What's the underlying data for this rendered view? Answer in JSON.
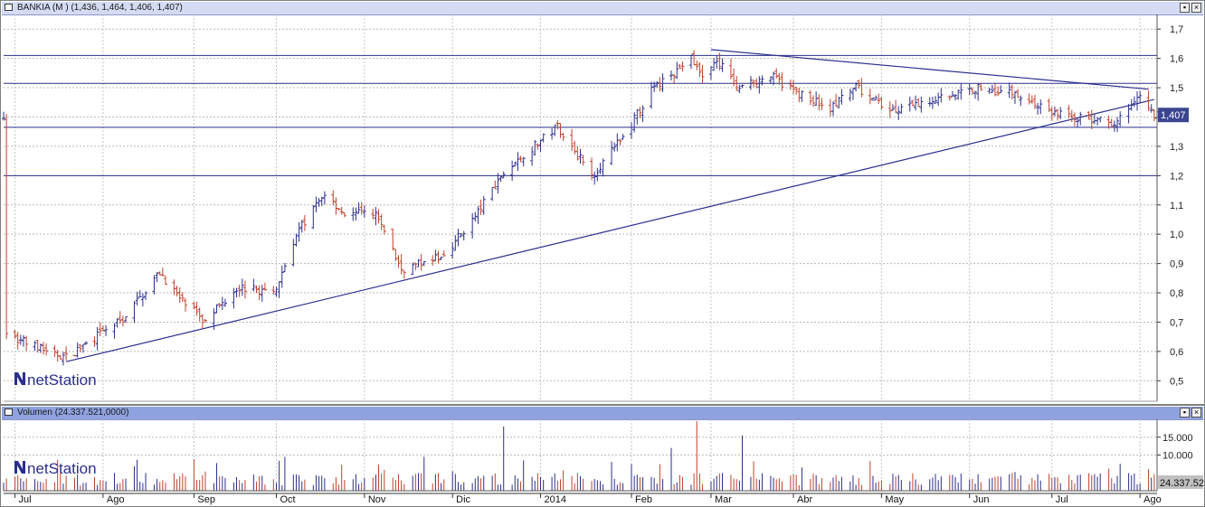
{
  "price_panel": {
    "title": "BANKIA (M ) (1,436, 1,464, 1,406, 1,407)",
    "last_price_badge": "1,407",
    "watermark": "netStation"
  },
  "volume_panel": {
    "title": "Volumen (24.337.521,0000)",
    "last_volume_badge": "24.337.52",
    "watermark": "netStation"
  },
  "window_buttons": {
    "minimize": "▪",
    "close": "×"
  },
  "colors": {
    "up": "#2b2e8c",
    "down": "#c0402a",
    "trendline": "#2b2e8c",
    "badge": "#3b4590",
    "title_bar": "#d4dbf3",
    "volume_title_bar": "#8fa2e0"
  },
  "chart_data": [
    {
      "type": "ohlc",
      "series_name": "BANKIA",
      "ohlc_last": {
        "open": 1.436,
        "high": 1.464,
        "low": 1.406,
        "close": 1.407
      },
      "yticks": [
        "1,7",
        "1,6",
        "1,5",
        "1,4",
        "1,3",
        "1,2",
        "1,1",
        "1,0",
        "0,9",
        "0,8",
        "0,7",
        "0,6",
        "0,5"
      ],
      "ytick_values": [
        1.7,
        1.6,
        1.5,
        1.4,
        1.3,
        1.2,
        1.1,
        1.0,
        0.9,
        0.8,
        0.7,
        0.6,
        0.5
      ],
      "ylim": [
        0.43,
        1.75
      ],
      "xticks": [
        "Jul",
        "Ago",
        "Sep",
        "Oct",
        "Nov",
        "Dic",
        "2014",
        "Feb",
        "Mar",
        "Abr",
        "May",
        "Jun",
        "Jul",
        "Ago"
      ],
      "horizontal_lines": [
        1.61,
        1.515,
        1.365,
        1.2
      ],
      "trendlines": [
        {
          "from": [
            "2013-07-19",
            0.565
          ],
          "to": [
            "2014-08-06",
            1.46
          ]
        },
        {
          "from": [
            "2014-03-03",
            1.63
          ],
          "to": [
            "2014-08-04",
            1.495
          ]
        }
      ],
      "anchors": [
        [
          "2013-06-28",
          0.66
        ],
        [
          "2013-07-10",
          0.61
        ],
        [
          "2013-07-19",
          0.58
        ],
        [
          "2013-07-31",
          0.66
        ],
        [
          "2013-08-08",
          0.71
        ],
        [
          "2013-08-21",
          0.87
        ],
        [
          "2013-08-28",
          0.78
        ],
        [
          "2013-09-06",
          0.7
        ],
        [
          "2013-09-17",
          0.82
        ],
        [
          "2013-09-30",
          0.8
        ],
        [
          "2013-10-08",
          1.0
        ],
        [
          "2013-10-18",
          1.14
        ],
        [
          "2013-10-25",
          1.07
        ],
        [
          "2013-11-05",
          1.07
        ],
        [
          "2013-11-14",
          0.88
        ],
        [
          "2013-11-28",
          0.92
        ],
        [
          "2013-12-10",
          1.06
        ],
        [
          "2013-12-19",
          1.2
        ],
        [
          "2014-01-08",
          1.37
        ],
        [
          "2014-01-20",
          1.2
        ],
        [
          "2014-01-31",
          1.33
        ],
        [
          "2014-02-10",
          1.49
        ],
        [
          "2014-02-24",
          1.6
        ],
        [
          "2014-02-28",
          1.53
        ],
        [
          "2014-03-05",
          1.6
        ],
        [
          "2014-03-12",
          1.5
        ],
        [
          "2014-03-24",
          1.54
        ],
        [
          "2014-04-03",
          1.48
        ],
        [
          "2014-04-14",
          1.43
        ],
        [
          "2014-04-23",
          1.5
        ],
        [
          "2014-05-02",
          1.44
        ],
        [
          "2014-05-08",
          1.42
        ],
        [
          "2014-05-20",
          1.46
        ],
        [
          "2014-06-05",
          1.5
        ],
        [
          "2014-06-18",
          1.48
        ],
        [
          "2014-06-30",
          1.42
        ],
        [
          "2014-07-14",
          1.39
        ],
        [
          "2014-07-24",
          1.38
        ],
        [
          "2014-07-31",
          1.48
        ],
        [
          "2014-08-06",
          1.41
        ]
      ]
    },
    {
      "type": "bar",
      "series_name": "Volumen",
      "last_value": 24337521.0,
      "yticks": [
        "15.000",
        "10.000"
      ],
      "ytick_values": [
        15000,
        10000
      ],
      "ylim": [
        0,
        20000
      ],
      "spikes": [
        [
          "2013-12-20",
          18000
        ],
        [
          "2014-02-26",
          19500
        ],
        [
          "2014-03-14",
          15500
        ],
        [
          "2014-02-17",
          12000
        ],
        [
          "2013-10-04",
          9500
        ],
        [
          "2013-11-22",
          9500
        ]
      ]
    }
  ]
}
